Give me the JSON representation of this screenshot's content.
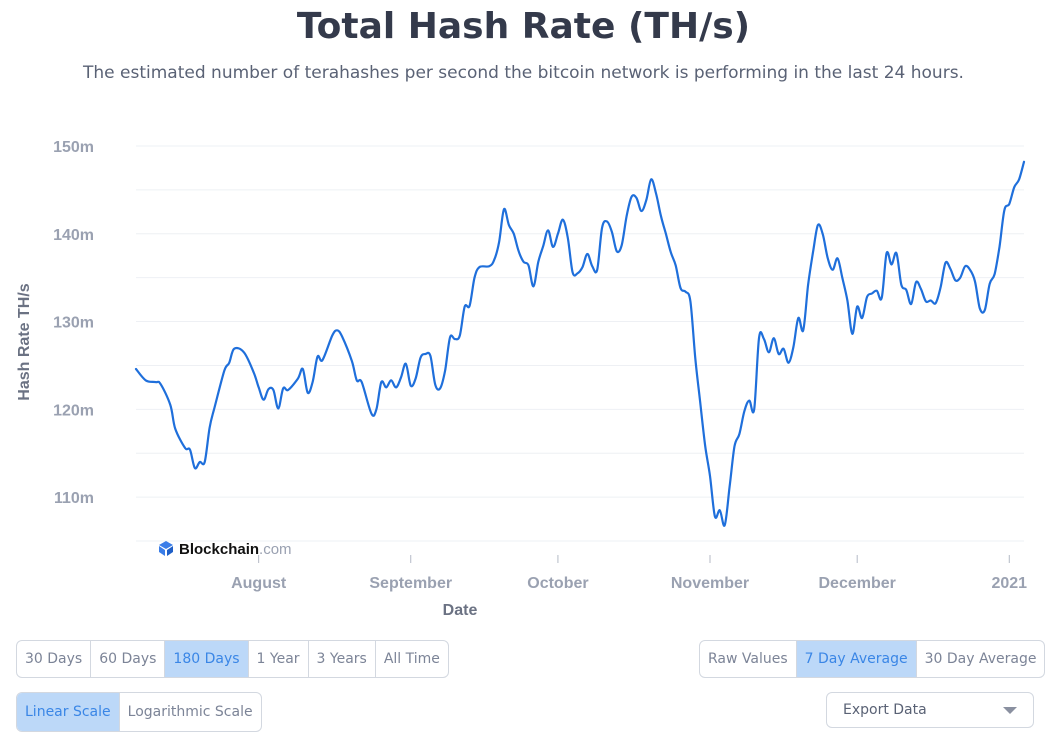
{
  "header": {
    "title": "Total Hash Rate (TH/s)",
    "subtitle": "The estimated number of terahashes per second the bitcoin network is performing in the last 24 hours."
  },
  "watermark": {
    "brand": "Blockchain",
    "suffix": ".com"
  },
  "colors": {
    "line": "#1f6fdb",
    "grid": "#eef0f4",
    "axis_text": "#9aa1b1",
    "active_bg": "#bcd8f8",
    "logo": "#3a7de8"
  },
  "chart_data": {
    "type": "line",
    "title": "Total Hash Rate (TH/s)",
    "xlabel": "Date",
    "ylabel": "Hash Rate TH/s",
    "ylim": [
      105,
      150
    ],
    "xlim": [
      "2020-07-07",
      "2021-01-04"
    ],
    "yticks": [
      {
        "value": 150,
        "label": "150m"
      },
      {
        "value": 140,
        "label": "140m"
      },
      {
        "value": 130,
        "label": "130m"
      },
      {
        "value": 120,
        "label": "120m"
      },
      {
        "value": 110,
        "label": "110m"
      }
    ],
    "xticks": [
      {
        "date": "2020-08-01",
        "label": "August"
      },
      {
        "date": "2020-09-01",
        "label": "September"
      },
      {
        "date": "2020-10-01",
        "label": "October"
      },
      {
        "date": "2020-11-01",
        "label": "November"
      },
      {
        "date": "2020-12-01",
        "label": "December"
      },
      {
        "date": "2021-01-01",
        "label": "2021"
      }
    ],
    "grid": true,
    "series": [
      {
        "values": [
          [
            "2020-07-07",
            124.6
          ],
          [
            "2020-07-09",
            123.3
          ],
          [
            "2020-07-11",
            123.1
          ],
          [
            "2020-07-12",
            122.9
          ],
          [
            "2020-07-14",
            120.5
          ],
          [
            "2020-07-15",
            117.8
          ],
          [
            "2020-07-17",
            115.6
          ],
          [
            "2020-07-18",
            115.4
          ],
          [
            "2020-07-19",
            113.3
          ],
          [
            "2020-07-20",
            114.0
          ],
          [
            "2020-07-21",
            114.0
          ],
          [
            "2020-07-22",
            117.9
          ],
          [
            "2020-07-23",
            120.2
          ],
          [
            "2020-07-25",
            124.4
          ],
          [
            "2020-07-26",
            125.3
          ],
          [
            "2020-07-27",
            126.9
          ],
          [
            "2020-07-29",
            126.5
          ],
          [
            "2020-07-31",
            124.2
          ],
          [
            "2020-08-01",
            122.5
          ],
          [
            "2020-08-02",
            121.1
          ],
          [
            "2020-08-03",
            122.3
          ],
          [
            "2020-08-04",
            122.2
          ],
          [
            "2020-08-05",
            120.1
          ],
          [
            "2020-08-06",
            122.4
          ],
          [
            "2020-08-07",
            122.2
          ],
          [
            "2020-08-09",
            123.5
          ],
          [
            "2020-08-10",
            124.6
          ],
          [
            "2020-08-11",
            121.9
          ],
          [
            "2020-08-12",
            123.1
          ],
          [
            "2020-08-13",
            126.0
          ],
          [
            "2020-08-14",
            125.6
          ],
          [
            "2020-08-16",
            128.4
          ],
          [
            "2020-08-17",
            129.0
          ],
          [
            "2020-08-18",
            128.3
          ],
          [
            "2020-08-20",
            125.5
          ],
          [
            "2020-08-21",
            123.3
          ],
          [
            "2020-08-22",
            123.1
          ],
          [
            "2020-08-24",
            119.5
          ],
          [
            "2020-08-25",
            120.0
          ],
          [
            "2020-08-26",
            123.1
          ],
          [
            "2020-08-27",
            122.5
          ],
          [
            "2020-08-28",
            123.3
          ],
          [
            "2020-08-29",
            122.5
          ],
          [
            "2020-08-30",
            123.6
          ],
          [
            "2020-08-31",
            125.2
          ],
          [
            "2020-09-01",
            122.7
          ],
          [
            "2020-09-02",
            123.5
          ],
          [
            "2020-09-03",
            125.9
          ],
          [
            "2020-09-04",
            126.3
          ],
          [
            "2020-09-05",
            126.1
          ],
          [
            "2020-09-06",
            122.8
          ],
          [
            "2020-09-07",
            122.4
          ],
          [
            "2020-09-08",
            124.4
          ],
          [
            "2020-09-09",
            128.2
          ],
          [
            "2020-09-10",
            128.0
          ],
          [
            "2020-09-11",
            128.4
          ],
          [
            "2020-09-12",
            131.7
          ],
          [
            "2020-09-13",
            131.8
          ],
          [
            "2020-09-14",
            135.0
          ],
          [
            "2020-09-15",
            136.2
          ],
          [
            "2020-09-17",
            136.3
          ],
          [
            "2020-09-18",
            137.0
          ],
          [
            "2020-09-19",
            139.0
          ],
          [
            "2020-09-20",
            142.8
          ],
          [
            "2020-09-21",
            141.0
          ],
          [
            "2020-09-22",
            140.0
          ],
          [
            "2020-09-23",
            138.0
          ],
          [
            "2020-09-24",
            136.8
          ],
          [
            "2020-09-25",
            136.4
          ],
          [
            "2020-09-26",
            134.0
          ],
          [
            "2020-09-27",
            136.8
          ],
          [
            "2020-09-28",
            138.6
          ],
          [
            "2020-09-29",
            140.4
          ],
          [
            "2020-09-30",
            138.5
          ],
          [
            "2020-10-01",
            140.0
          ],
          [
            "2020-10-02",
            141.6
          ],
          [
            "2020-10-03",
            139.6
          ],
          [
            "2020-10-04",
            135.6
          ],
          [
            "2020-10-05",
            135.5
          ],
          [
            "2020-10-06",
            136.2
          ],
          [
            "2020-10-07",
            137.7
          ],
          [
            "2020-10-08",
            136.3
          ],
          [
            "2020-10-09",
            135.9
          ],
          [
            "2020-10-10",
            140.7
          ],
          [
            "2020-10-11",
            141.4
          ],
          [
            "2020-10-12",
            140.2
          ],
          [
            "2020-10-13",
            138.0
          ],
          [
            "2020-10-14",
            138.7
          ],
          [
            "2020-10-15",
            142.0
          ],
          [
            "2020-10-16",
            144.2
          ],
          [
            "2020-10-17",
            144.1
          ],
          [
            "2020-10-18",
            142.6
          ],
          [
            "2020-10-19",
            143.8
          ],
          [
            "2020-10-20",
            146.2
          ],
          [
            "2020-10-21",
            144.6
          ],
          [
            "2020-10-22",
            142.0
          ],
          [
            "2020-10-23",
            140.0
          ],
          [
            "2020-10-24",
            137.9
          ],
          [
            "2020-10-25",
            136.4
          ],
          [
            "2020-10-26",
            133.8
          ],
          [
            "2020-10-27",
            133.4
          ],
          [
            "2020-10-28",
            132.3
          ],
          [
            "2020-10-29",
            125.8
          ],
          [
            "2020-10-30",
            120.8
          ],
          [
            "2020-10-31",
            115.9
          ],
          [
            "2020-11-01",
            112.4
          ],
          [
            "2020-11-02",
            107.8
          ],
          [
            "2020-11-03",
            108.5
          ],
          [
            "2020-11-04",
            106.8
          ],
          [
            "2020-11-05",
            111.2
          ],
          [
            "2020-11-06",
            115.8
          ],
          [
            "2020-11-07",
            117.2
          ],
          [
            "2020-11-08",
            119.8
          ],
          [
            "2020-11-09",
            121.0
          ],
          [
            "2020-11-10",
            120.0
          ],
          [
            "2020-11-11",
            128.2
          ],
          [
            "2020-11-12",
            128.0
          ],
          [
            "2020-11-13",
            126.5
          ],
          [
            "2020-11-14",
            128.1
          ],
          [
            "2020-11-15",
            126.3
          ],
          [
            "2020-11-16",
            126.9
          ],
          [
            "2020-11-17",
            125.3
          ],
          [
            "2020-11-18",
            127.1
          ],
          [
            "2020-11-19",
            130.4
          ],
          [
            "2020-11-20",
            129.0
          ],
          [
            "2020-11-21",
            134.2
          ],
          [
            "2020-11-22",
            137.9
          ],
          [
            "2020-11-23",
            141.0
          ],
          [
            "2020-11-24",
            139.9
          ],
          [
            "2020-11-25",
            137.2
          ],
          [
            "2020-11-26",
            135.9
          ],
          [
            "2020-11-27",
            137.2
          ],
          [
            "2020-11-28",
            134.9
          ],
          [
            "2020-11-29",
            132.4
          ],
          [
            "2020-11-30",
            128.6
          ],
          [
            "2020-12-01",
            131.7
          ],
          [
            "2020-12-02",
            130.4
          ],
          [
            "2020-12-03",
            132.8
          ],
          [
            "2020-12-04",
            133.2
          ],
          [
            "2020-12-05",
            133.5
          ],
          [
            "2020-12-06",
            132.7
          ],
          [
            "2020-12-07",
            137.8
          ],
          [
            "2020-12-08",
            136.5
          ],
          [
            "2020-12-09",
            137.8
          ],
          [
            "2020-12-10",
            134.2
          ],
          [
            "2020-12-11",
            133.6
          ],
          [
            "2020-12-12",
            132.0
          ],
          [
            "2020-12-13",
            134.5
          ],
          [
            "2020-12-14",
            133.7
          ],
          [
            "2020-12-15",
            132.3
          ],
          [
            "2020-12-16",
            132.4
          ],
          [
            "2020-12-17",
            132.1
          ],
          [
            "2020-12-18",
            133.9
          ],
          [
            "2020-12-19",
            136.7
          ],
          [
            "2020-12-20",
            136.0
          ],
          [
            "2020-12-21",
            134.7
          ],
          [
            "2020-12-22",
            135.0
          ],
          [
            "2020-12-23",
            136.3
          ],
          [
            "2020-12-24",
            135.9
          ],
          [
            "2020-12-25",
            134.6
          ],
          [
            "2020-12-26",
            131.5
          ],
          [
            "2020-12-27",
            131.3
          ],
          [
            "2020-12-28",
            134.3
          ],
          [
            "2020-12-29",
            135.4
          ],
          [
            "2020-12-30",
            138.5
          ],
          [
            "2020-12-31",
            142.7
          ],
          [
            "2021-01-01",
            143.4
          ],
          [
            "2021-01-02",
            145.3
          ],
          [
            "2021-01-03",
            146.2
          ],
          [
            "2021-01-04",
            148.2
          ]
        ]
      }
    ]
  },
  "controls": {
    "periods": [
      {
        "label": "30 Days",
        "active": false
      },
      {
        "label": "60 Days",
        "active": false
      },
      {
        "label": "180 Days",
        "active": true
      },
      {
        "label": "1 Year",
        "active": false
      },
      {
        "label": "3 Years",
        "active": false
      },
      {
        "label": "All Time",
        "active": false
      }
    ],
    "averages": [
      {
        "label": "Raw Values",
        "active": false
      },
      {
        "label": "7 Day Average",
        "active": true
      },
      {
        "label": "30 Day Average",
        "active": false
      }
    ],
    "scales": [
      {
        "label": "Linear Scale",
        "active": true
      },
      {
        "label": "Logarithmic Scale",
        "active": false
      }
    ],
    "export_label": "Export Data"
  }
}
